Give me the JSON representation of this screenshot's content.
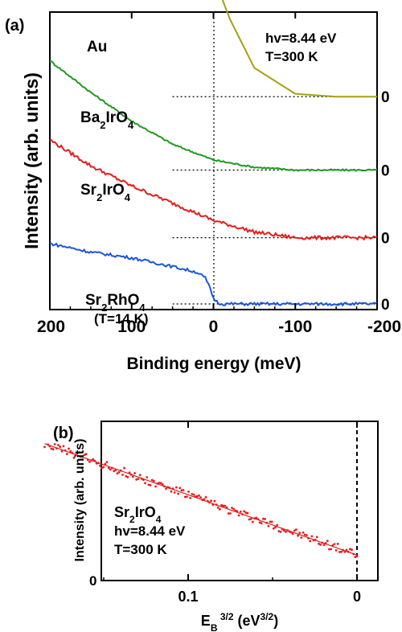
{
  "chart_data": [
    {
      "panel_label": "(a)",
      "type": "line",
      "xlabel": "Binding energy (meV)",
      "ylabel": "Intensity (arb. units)",
      "xlim": [
        200,
        -200
      ],
      "x_ticks": [
        200,
        100,
        0,
        -100,
        -200
      ],
      "x_tick_labels": [
        "200",
        "100",
        "0",
        "-100",
        "-200"
      ],
      "annotation_lines": [
        "hv=8.44 eV",
        "T=300 K"
      ],
      "zero_label": "0",
      "series": [
        {
          "name_parts": [
            [
              "Au",
              ""
            ]
          ],
          "color": "#a6a014",
          "offset": 0.72,
          "x": [
            200,
            150,
            100,
            50,
            20,
            0,
            -20,
            -50,
            -100,
            -150,
            -200
          ],
          "y": [
            0.98,
            0.95,
            0.88,
            0.73,
            0.55,
            0.42,
            0.27,
            0.1,
            0.01,
            0.0,
            0.0
          ]
        },
        {
          "name_parts": [
            [
              "Ba",
              ""
            ],
            [
              "2",
              "sub"
            ],
            [
              "IrO",
              ""
            ],
            [
              "4",
              "sub"
            ]
          ],
          "color": "#1e9a1e",
          "offset": 0.465,
          "x": [
            200,
            150,
            100,
            50,
            0,
            -50,
            -100,
            -150,
            -200
          ],
          "y": [
            0.38,
            0.27,
            0.17,
            0.09,
            0.035,
            0.01,
            0.0,
            0.0,
            0.0
          ]
        },
        {
          "name_parts": [
            [
              "Sr",
              ""
            ],
            [
              "2",
              "sub"
            ],
            [
              "IrO",
              ""
            ],
            [
              "4",
              "sub"
            ]
          ],
          "color": "#e51d1d",
          "offset": 0.23,
          "x": [
            200,
            150,
            100,
            50,
            0,
            -50,
            -100,
            -150,
            -200
          ],
          "y": [
            0.34,
            0.25,
            0.18,
            0.12,
            0.06,
            0.02,
            0.0,
            0.0,
            0.0
          ]
        },
        {
          "name_parts": [
            [
              "Sr",
              ""
            ],
            [
              "2",
              "sub"
            ],
            [
              "RhO",
              ""
            ],
            [
              "4",
              "sub"
            ]
          ],
          "sub_label": "(T=14 K)",
          "color": "#1c55d6",
          "offset": 0.0,
          "x": [
            200,
            150,
            100,
            50,
            20,
            10,
            5,
            0,
            -5,
            -10,
            -50,
            -100,
            -150,
            -200
          ],
          "y": [
            0.21,
            0.18,
            0.16,
            0.13,
            0.11,
            0.09,
            0.06,
            0.02,
            0.005,
            0.0,
            0.0,
            0.0,
            0.0,
            0.0
          ]
        }
      ]
    },
    {
      "panel_label": "(b)",
      "type": "scatter",
      "xlabel_parts": [
        [
          "E",
          ""
        ],
        [
          "B",
          "sub"
        ],
        [
          " 3/2",
          "sup"
        ],
        [
          " (eV",
          ""
        ],
        [
          "3/2",
          "sup"
        ],
        [
          ")",
          ""
        ]
      ],
      "ylabel": "Intensity (arb. units)",
      "xlim": [
        0.0,
        0.2
      ],
      "x_ticks": [
        0.1,
        0.0
      ],
      "x_tick_labels": [
        "0.1",
        "0"
      ],
      "y_tick_labels": [
        "0"
      ],
      "annotation_parts": [
        [
          [
            "Sr",
            ""
          ],
          [
            "2",
            "sub"
          ],
          [
            "IrO",
            ""
          ],
          [
            "4",
            "sub"
          ]
        ],
        [
          [
            "hv=8.44 eV",
            ""
          ]
        ],
        [
          [
            "T=300 K",
            ""
          ]
        ]
      ],
      "color": "#e51d1d",
      "fit_line": {
        "x": [
          0.185,
          0.0
        ],
        "y": [
          0.86,
          0.16
        ]
      }
    }
  ]
}
